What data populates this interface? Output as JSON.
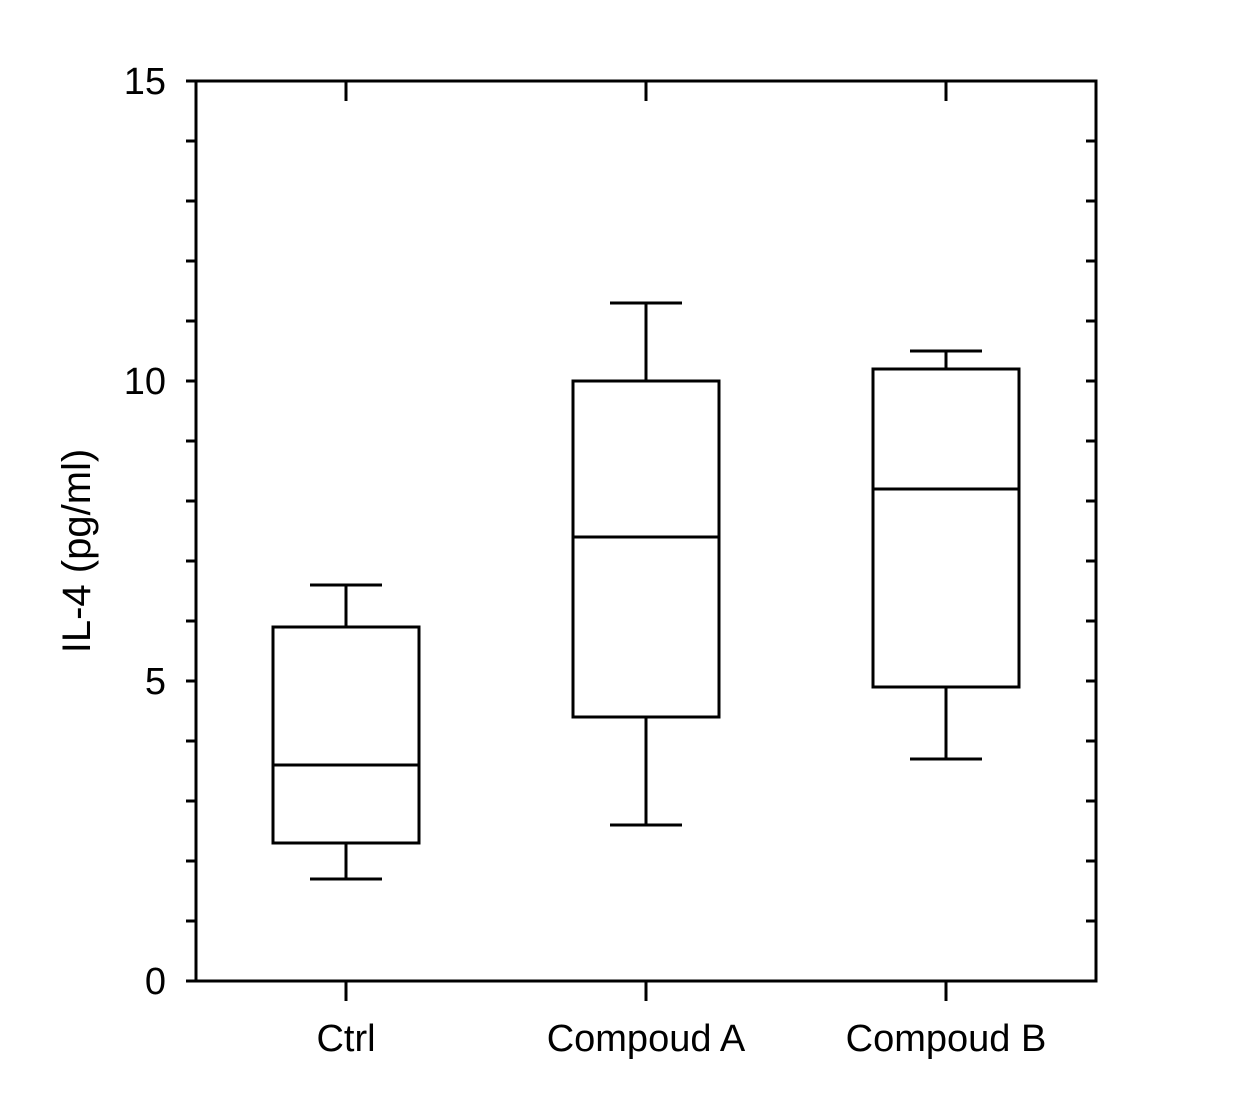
{
  "chart_data": {
    "type": "box",
    "title": "",
    "xlabel": "",
    "ylabel": "IL-4 (pg/ml)",
    "ylim": [
      0,
      15
    ],
    "yticks": [
      0,
      5,
      10,
      15
    ],
    "y_minor_step": 1,
    "categories": [
      "Ctrl",
      "Compoud A",
      "Compoud B"
    ],
    "boxes": [
      {
        "category": "Ctrl",
        "whisker_low": 1.7,
        "q1": 2.3,
        "median": 3.6,
        "q3": 5.9,
        "whisker_high": 6.6
      },
      {
        "category": "Compoud A",
        "whisker_low": 2.6,
        "q1": 4.4,
        "median": 7.4,
        "q3": 10.0,
        "whisker_high": 11.3
      },
      {
        "category": "Compoud B",
        "whisker_low": 3.7,
        "q1": 4.9,
        "median": 8.2,
        "q3": 10.2,
        "whisker_high": 10.5
      }
    ],
    "grid": false,
    "legend": "none",
    "box_color": "#000000",
    "fill_color": "#ffffff"
  }
}
